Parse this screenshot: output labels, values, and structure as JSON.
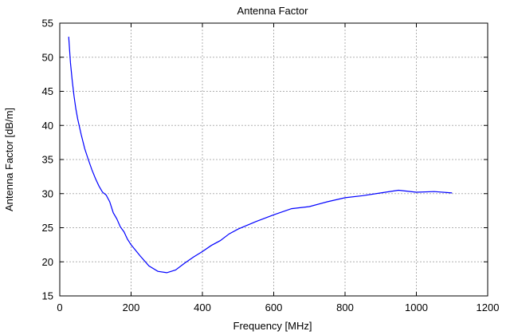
{
  "chart_data": {
    "type": "line",
    "title": "Antenna Factor",
    "xlabel": "Frequency [MHz]",
    "ylabel": "Antenna Factor [dB/m]",
    "xlim": [
      0,
      1200
    ],
    "ylim": [
      15,
      55
    ],
    "xticks": [
      0,
      200,
      400,
      600,
      800,
      1000,
      1200
    ],
    "yticks": [
      15,
      20,
      25,
      30,
      35,
      40,
      45,
      50,
      55
    ],
    "grid": true,
    "series": [
      {
        "name": "Antenna Factor",
        "color": "#0000ff",
        "x": [
          25,
          30,
          35,
          40,
          45,
          50,
          60,
          70,
          80,
          90,
          100,
          110,
          120,
          130,
          140,
          150,
          160,
          170,
          180,
          190,
          200,
          225,
          250,
          275,
          300,
          325,
          350,
          375,
          400,
          425,
          450,
          475,
          500,
          550,
          600,
          650,
          700,
          750,
          800,
          850,
          900,
          950,
          1000,
          1050,
          1100
        ],
        "y": [
          53,
          49.2,
          46.5,
          44.3,
          42.5,
          41,
          38.7,
          36.6,
          35,
          33.5,
          32.2,
          31.1,
          30.2,
          29.8,
          28.8,
          27.2,
          26.3,
          25.1,
          24.4,
          23.3,
          22.5,
          20.9,
          19.4,
          18.6,
          18.4,
          18.8,
          19.8,
          20.7,
          21.5,
          22.4,
          23.1,
          24.1,
          24.8,
          25.9,
          26.9,
          27.8,
          28.1,
          28.8,
          29.4,
          29.7,
          30.1,
          30.5,
          30.2,
          30.3,
          30.1
        ]
      }
    ]
  }
}
